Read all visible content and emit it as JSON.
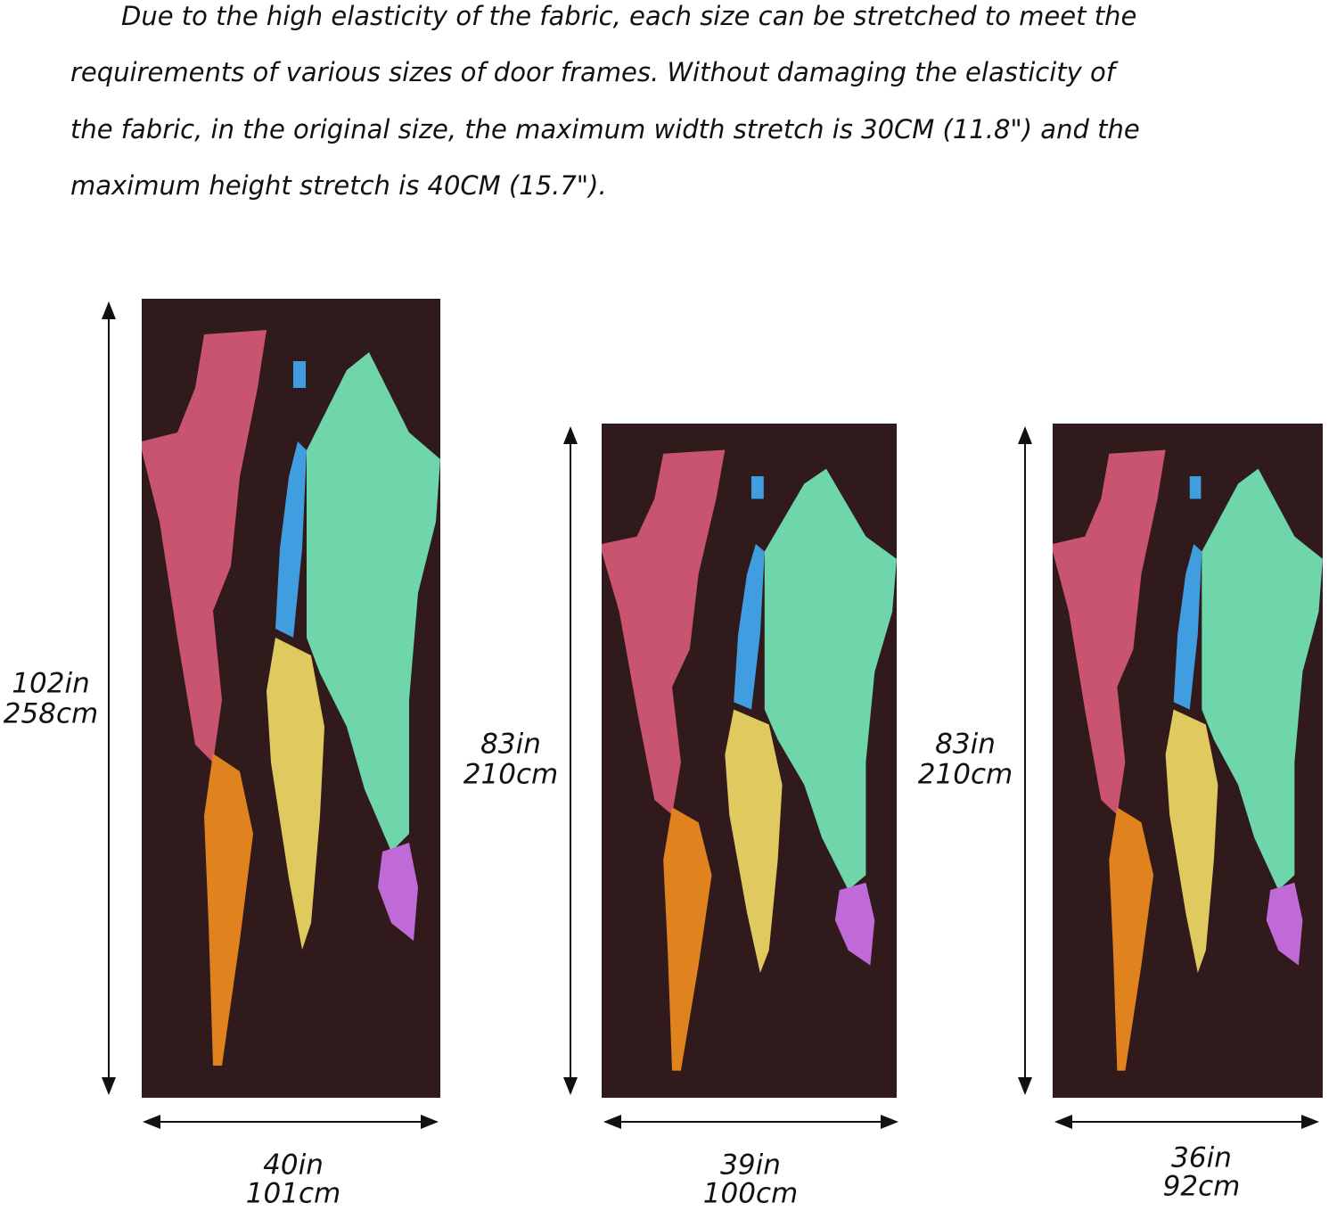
{
  "description": {
    "lines": [
      "Due to the high elasticity of the fabric, each size can be stretched to meet the",
      "requirements of various sizes of door frames. Without damaging the elasticity of",
      "the fabric, in the original size, the maximum width stretch is 30CM (11.8\") and the",
      "maximum height stretch is 40CM (15.7\")."
    ]
  },
  "panels": [
    {
      "height_in": "102in",
      "height_cm": "258cm",
      "width_in": "40in",
      "width_cm": "101cm"
    },
    {
      "height_in": "83in",
      "height_cm": "210cm",
      "width_in": "39in",
      "width_cm": "100cm"
    },
    {
      "height_in": "83in",
      "height_cm": "210cm",
      "width_in": "36in",
      "width_cm": "92cm"
    }
  ]
}
